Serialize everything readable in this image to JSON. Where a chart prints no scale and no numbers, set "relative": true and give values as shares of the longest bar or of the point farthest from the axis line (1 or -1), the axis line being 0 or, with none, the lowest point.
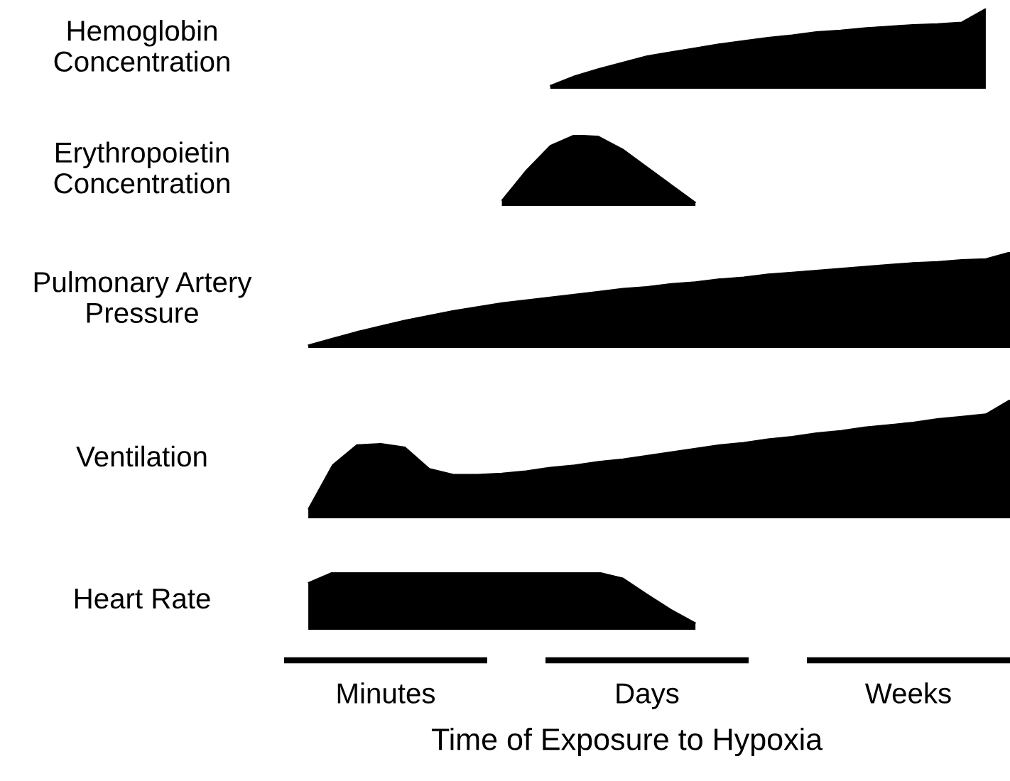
{
  "chart_data": [
    {
      "type": "area",
      "title": "Hemoglobin\nConcentration",
      "relative": true,
      "categories": [
        null,
        null,
        null,
        null,
        null,
        null,
        null,
        null,
        null,
        null,
        null,
        null,
        null,
        null,
        null,
        null,
        null,
        null,
        null,
        null,
        null,
        null,
        null,
        null,
        null,
        null,
        null,
        null,
        null,
        null,
        null
      ],
      "series": [
        {
          "color": "#000000",
          "values": [
            null,
            null,
            null,
            null,
            null,
            null,
            null,
            null,
            null,
            null,
            null,
            0.04,
            0.16,
            0.25,
            0.33,
            0.41,
            0.46,
            0.51,
            0.56,
            0.6,
            0.64,
            0.67,
            0.71,
            0.73,
            0.76,
            0.78,
            0.8,
            0.81,
            0.83,
            1.0,
            null
          ]
        }
      ]
    },
    {
      "type": "area",
      "title": "Erythropoietin\nConcentration",
      "relative": true,
      "categories": [
        null,
        null,
        null,
        null,
        null,
        null,
        null,
        null,
        null,
        null,
        null,
        null,
        null,
        null,
        null,
        null,
        null,
        null,
        null,
        null,
        null,
        null,
        null,
        null,
        null,
        null,
        null,
        null,
        null,
        null,
        null
      ],
      "series": [
        {
          "color": "#000000",
          "values": [
            null,
            null,
            null,
            null,
            null,
            null,
            null,
            null,
            null,
            0.08,
            0.5,
            0.85,
            1.0,
            0.98,
            0.8,
            0.55,
            0.3,
            0.05,
            null,
            null,
            null,
            null,
            null,
            null,
            null,
            null,
            null,
            null,
            null,
            null,
            null
          ]
        }
      ]
    },
    {
      "type": "area",
      "title": "Pulmonary Artery\nPressure",
      "relative": true,
      "categories": [
        null,
        null,
        null,
        null,
        null,
        null,
        null,
        null,
        null,
        null,
        null,
        null,
        null,
        null,
        null,
        null,
        null,
        null,
        null,
        null,
        null,
        null,
        null,
        null,
        null,
        null,
        null,
        null,
        null,
        null,
        null
      ],
      "series": [
        {
          "color": "#000000",
          "values": [
            null,
            0.03,
            0.1,
            0.17,
            0.23,
            0.29,
            0.34,
            0.39,
            0.43,
            0.47,
            0.5,
            0.53,
            0.56,
            0.59,
            0.62,
            0.64,
            0.67,
            0.69,
            0.72,
            0.74,
            0.77,
            0.79,
            0.81,
            0.83,
            0.85,
            0.87,
            0.89,
            0.9,
            0.92,
            0.93,
            1.0
          ]
        }
      ]
    },
    {
      "type": "area",
      "title": "Ventilation",
      "relative": true,
      "categories": [
        null,
        null,
        null,
        null,
        null,
        null,
        null,
        null,
        null,
        null,
        null,
        null,
        null,
        null,
        null,
        null,
        null,
        null,
        null,
        null,
        null,
        null,
        null,
        null,
        null,
        null,
        null,
        null,
        null,
        null,
        null
      ],
      "series": [
        {
          "color": "#000000",
          "values": [
            null,
            0.08,
            0.45,
            0.62,
            0.63,
            0.6,
            0.42,
            0.37,
            0.37,
            0.38,
            0.4,
            0.43,
            0.45,
            0.48,
            0.5,
            0.53,
            0.56,
            0.59,
            0.62,
            0.64,
            0.67,
            0.69,
            0.72,
            0.74,
            0.77,
            0.79,
            0.81,
            0.84,
            0.86,
            0.88,
            1.0
          ]
        }
      ]
    },
    {
      "type": "area",
      "title": "Heart Rate",
      "relative": true,
      "xlabel": "Time of Exposure to Hypoxia",
      "annotations": [
        "Minutes",
        "Days",
        "Weeks"
      ],
      "categories": [
        null,
        null,
        null,
        null,
        null,
        null,
        null,
        null,
        null,
        null,
        null,
        null,
        null,
        null,
        null,
        null,
        null,
        null,
        null,
        null,
        null,
        null,
        null,
        null,
        null,
        null,
        null,
        null,
        null,
        null,
        null
      ],
      "series": [
        {
          "color": "#000000",
          "values": [
            null,
            0.82,
            1.0,
            1.0,
            1.0,
            1.0,
            1.0,
            1.0,
            1.0,
            1.0,
            1.0,
            1.0,
            1.0,
            1.0,
            0.9,
            0.62,
            0.35,
            0.12,
            null,
            null,
            null,
            null,
            null,
            null,
            null,
            null,
            null,
            null,
            null,
            null,
            null
          ]
        }
      ]
    }
  ]
}
